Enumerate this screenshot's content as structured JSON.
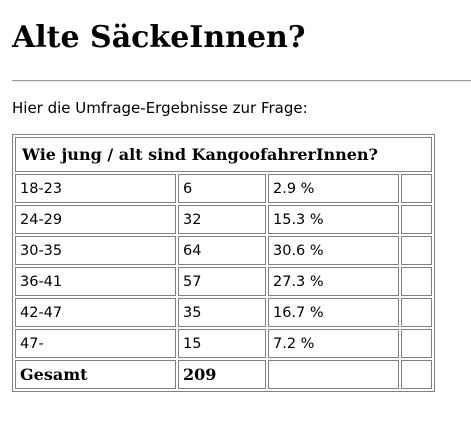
{
  "page": {
    "title": "Alte SäckeInnen?",
    "intro": "Hier die Umfrage-Ergebnisse zur Frage:"
  },
  "table": {
    "question": "Wie jung / alt sind KangoofahrerInnen?",
    "rows": [
      {
        "range": "18-23",
        "count": "6",
        "percent": "2.9 %",
        "extra": ""
      },
      {
        "range": "24-29",
        "count": "32",
        "percent": "15.3 %",
        "extra": ""
      },
      {
        "range": "30-35",
        "count": "64",
        "percent": "30.6 %",
        "extra": ""
      },
      {
        "range": "36-41",
        "count": "57",
        "percent": "27.3 %",
        "extra": ""
      },
      {
        "range": "42-47",
        "count": "35",
        "percent": "16.7 %",
        "extra": ""
      },
      {
        "range": "47-",
        "count": "15",
        "percent": "7.2 %",
        "extra": ""
      }
    ],
    "total": {
      "label": "Gesamt",
      "count": "209",
      "percent": "",
      "extra": ""
    }
  }
}
